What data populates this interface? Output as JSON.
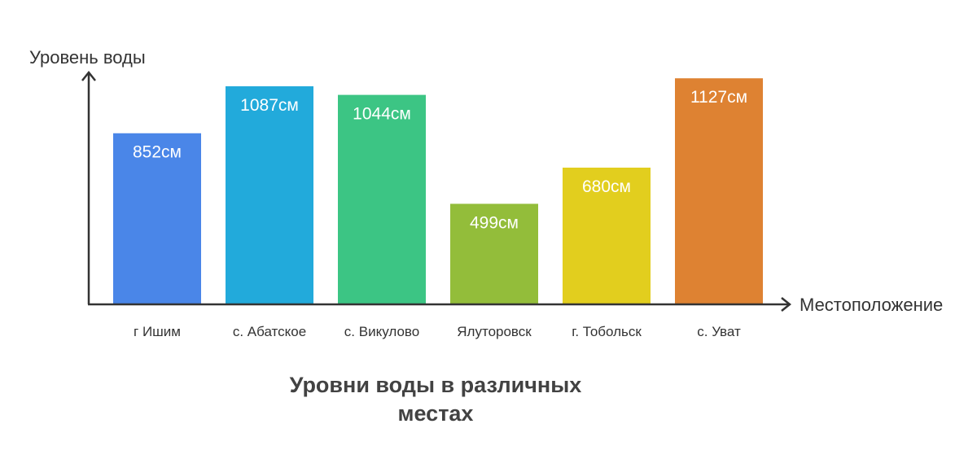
{
  "chart_data": {
    "type": "bar",
    "title_lines": [
      "Уровни воды в различных",
      "местах"
    ],
    "xlabel": "Местоположение",
    "ylabel": "Уровень воды",
    "ylim": [
      0,
      1200
    ],
    "unit": "см",
    "categories": [
      "г Ишим",
      "с. Абатское",
      "с. Викулово",
      "Ялуторовск",
      "г. Тобольск",
      "с. Уват"
    ],
    "values": [
      852,
      1087,
      1044,
      499,
      680,
      1127
    ],
    "value_labels": [
      "852см",
      "1087см",
      "1044см",
      "499см",
      "680см",
      "1127см"
    ],
    "colors": [
      "#4A86E8",
      "#22AADB",
      "#3CC584",
      "#93BD3A",
      "#E2CE1E",
      "#DE8232"
    ],
    "grid": false,
    "legend": "none"
  }
}
